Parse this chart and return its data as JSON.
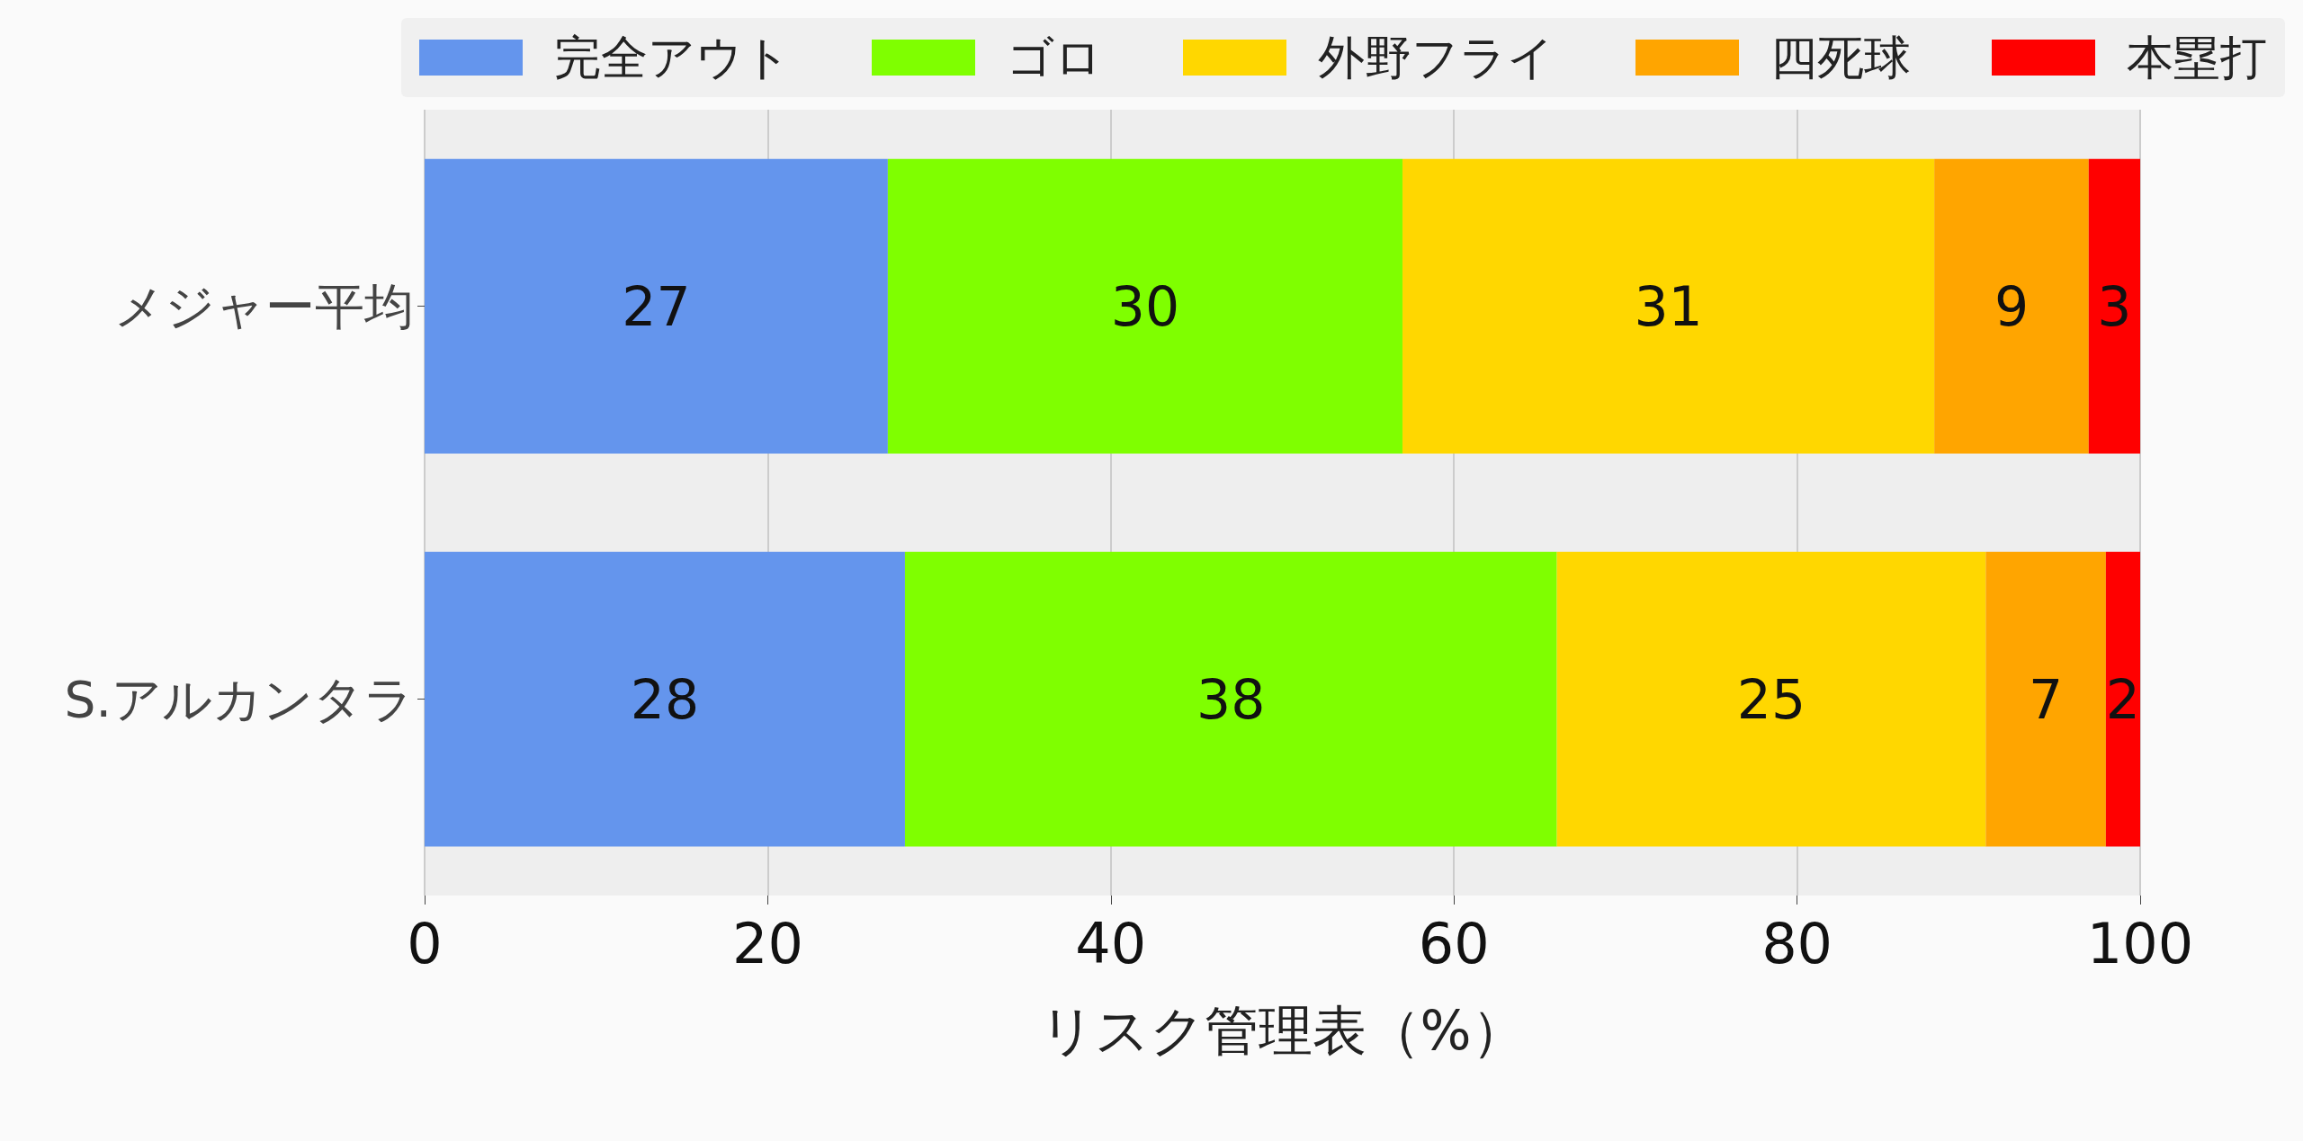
{
  "chart_data": {
    "type": "bar",
    "orientation": "horizontal",
    "stacked": true,
    "categories": [
      "メジャー平均",
      "S.アルカンタラ"
    ],
    "series": [
      {
        "name": "完全アウト",
        "color": "#6495ed",
        "values": [
          27,
          28
        ]
      },
      {
        "name": "ゴロ",
        "color": "#7fff00",
        "values": [
          30,
          38
        ]
      },
      {
        "name": "外野フライ",
        "color": "#ffd700",
        "values": [
          31,
          25
        ]
      },
      {
        "name": "四死球",
        "color": "#ffa500",
        "values": [
          9,
          7
        ]
      },
      {
        "name": "本塁打",
        "color": "#ff0000",
        "values": [
          3,
          2
        ]
      }
    ],
    "xlabel": "リスク管理表（%）",
    "xlim": [
      0,
      100
    ],
    "xticks": [
      0,
      20,
      40,
      60,
      80,
      100
    ],
    "grid": "x",
    "legend": "top",
    "data_labels": true
  }
}
